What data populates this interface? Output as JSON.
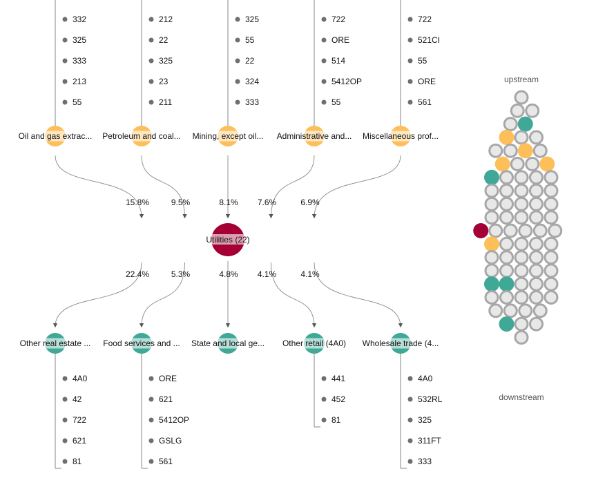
{
  "center": {
    "label": "Utilities (22)",
    "color": "#a50036"
  },
  "colors": {
    "upstream": "#fdbf5a",
    "downstream": "#3fa897",
    "center": "#a50036",
    "hex_empty_fill": "#e8e8e8",
    "hex_empty_stroke": "#a7a7a7"
  },
  "upstream": [
    {
      "label": "Oil and gas extrac...",
      "share": "15.8%",
      "items": [
        "332",
        "325",
        "333",
        "213",
        "55"
      ]
    },
    {
      "label": "Petroleum and coal...",
      "share": "9.5%",
      "items": [
        "212",
        "22",
        "325",
        "23",
        "211"
      ]
    },
    {
      "label": "Mining, except oil...",
      "share": "8.1%",
      "items": [
        "325",
        "55",
        "22",
        "324",
        "333"
      ]
    },
    {
      "label": "Administrative and...",
      "share": "7.6%",
      "items": [
        "722",
        "ORE",
        "514",
        "5412OP",
        "55"
      ]
    },
    {
      "label": "Miscellaneous prof...",
      "share": "6.9%",
      "items": [
        "722",
        "521CI",
        "55",
        "ORE",
        "561"
      ]
    }
  ],
  "downstream": [
    {
      "label": "Other real estate ...",
      "share": "22.4%",
      "items": [
        "4A0",
        "42",
        "722",
        "621",
        "81"
      ]
    },
    {
      "label": "Food services and ...",
      "share": "5.3%",
      "items": [
        "ORE",
        "621",
        "5412OP",
        "GSLG",
        "561"
      ]
    },
    {
      "label": "State and local ge...",
      "share": "4.8%",
      "items": []
    },
    {
      "label": "Other retail (4A0)",
      "share": "4.1%",
      "items": [
        "441",
        "452",
        "81"
      ]
    },
    {
      "label": "Wholesale trade (4...",
      "share": "4.1%",
      "items": [
        "4A0",
        "532RL",
        "325",
        "311FT",
        "333"
      ]
    }
  ],
  "sidebar": {
    "top_label": "upstream",
    "bottom_label": "downstream",
    "hex_rows": [
      "e",
      "ee",
      "ed",
      "uee",
      "eeue",
      "ueeu",
      "deeee",
      "eeeee",
      "eeeee",
      "eeeee",
      "ceeeee",
      "ueeee",
      "eeeee",
      "eeeee",
      "ddeee",
      "eeeee",
      "eeee",
      "dee",
      "e"
    ]
  }
}
